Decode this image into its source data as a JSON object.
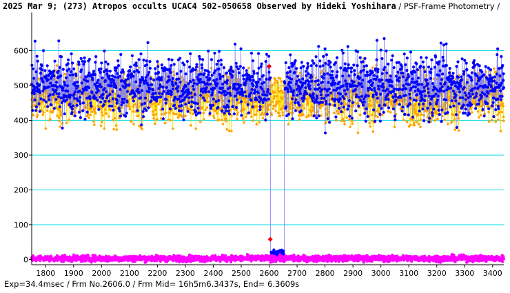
{
  "header": {
    "title_main": "2025 Mar 9; (273) Atropos occults UCAC4 502-050658 Observed by Hideki Yoshihara",
    "title_sub": " / PSF-Frame Photometry /"
  },
  "footer": {
    "text": "Exp=34.4msec / Frm No.2606.0 / Frm Mid= 16h5m6.3437s,  End= 6.3609s"
  },
  "colors": {
    "background": "#ffffff",
    "gridline": "#00d8e0",
    "target_series": "#0000ff",
    "target_line": "#8080ff",
    "comparison_series": "#ffa500",
    "comparison_line": "#ffdd00",
    "background_series": "#ff00ff",
    "event_marker": "#ff0000"
  },
  "chart_data": {
    "type": "line",
    "xlim": [
      1750,
      3440
    ],
    "ylim": [
      -15,
      710
    ],
    "x_ticks": [
      1800,
      1900,
      2000,
      2100,
      2200,
      2300,
      2400,
      2500,
      2600,
      2700,
      2800,
      2900,
      3000,
      3100,
      3200,
      3300,
      3400
    ],
    "y_ticks": [
      0,
      100,
      200,
      300,
      400,
      500,
      600
    ],
    "grid": {
      "horizontal": true,
      "vertical": false
    },
    "series": [
      {
        "key": "comparison",
        "color": "orange",
        "mean": 465,
        "spread": 55,
        "frames": [
          1750,
          3440
        ]
      },
      {
        "key": "target",
        "color": "blue",
        "mean": 500,
        "spread": 65,
        "frames": [
          1750,
          3440
        ],
        "occultation": {
          "start": 2605,
          "end": 2654,
          "level": 15
        }
      },
      {
        "key": "background",
        "color": "magenta",
        "mean": 3,
        "spread": 6,
        "frames": [
          1750,
          3440
        ]
      }
    ],
    "event_markers": [
      {
        "x": 2600,
        "y": 555
      },
      {
        "x": 2604,
        "y": 58
      }
    ]
  }
}
